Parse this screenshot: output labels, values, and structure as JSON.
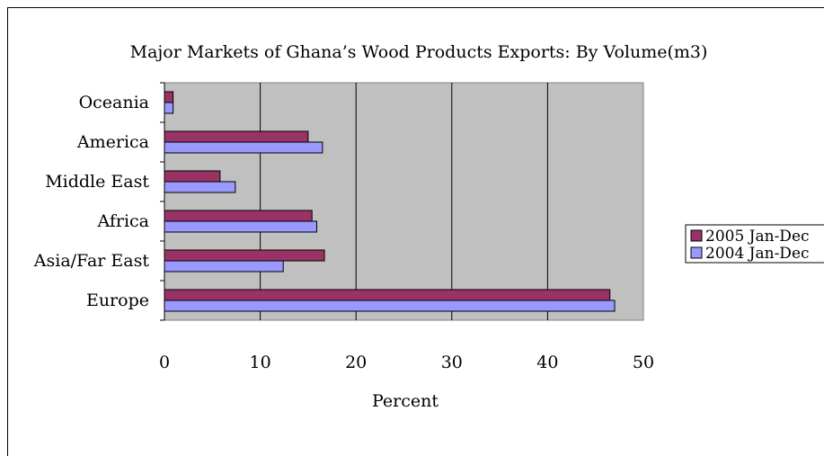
{
  "chart_data": {
    "type": "bar",
    "orientation": "horizontal",
    "title": "Major Markets of Ghana’s Wood Products Exports: By Volume(m3)",
    "xlabel": "Percent",
    "ylabel": "",
    "xlim": [
      0,
      50
    ],
    "xticks": [
      "0",
      "10",
      "20",
      "30",
      "40",
      "50"
    ],
    "categories": [
      "Oceania",
      "America",
      "Middle East",
      "Africa",
      "Asia/Far East",
      "Europe"
    ],
    "series": [
      {
        "name": "2005 Jan-Dec",
        "color": "#993366",
        "values": [
          0.9,
          15.0,
          5.8,
          15.4,
          16.7,
          46.5
        ]
      },
      {
        "name": "2004 Jan-Dec",
        "color": "#9999ff",
        "values": [
          0.9,
          16.5,
          7.4,
          15.9,
          12.4,
          47.0
        ]
      }
    ],
    "grid": "vertical",
    "plot_background": "#c0c0c0",
    "legend_position": "right"
  }
}
